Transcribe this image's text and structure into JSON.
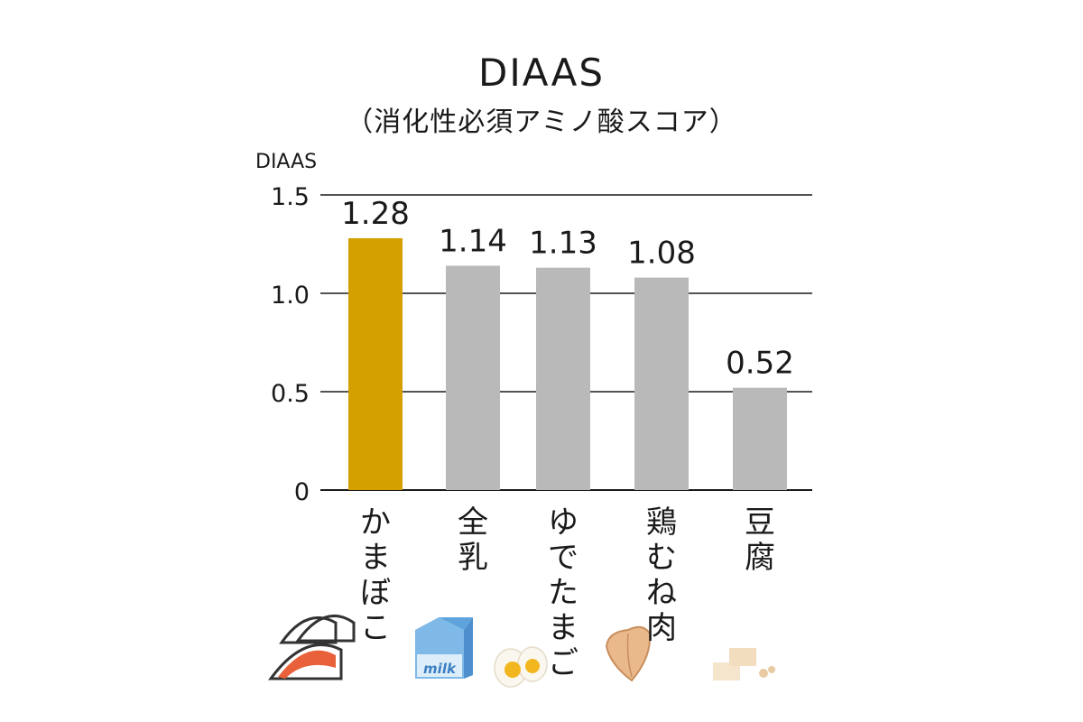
{
  "chart_data": {
    "type": "bar",
    "title": "DIAAS",
    "subtitle": "（消化性必須アミノ酸スコア）",
    "ylabel": "DIAAS",
    "xlabel": "",
    "ylim": [
      0,
      1.5
    ],
    "yticks": [
      "0",
      "0.5",
      "1.0",
      "1.5"
    ],
    "grid": true,
    "categories": [
      "かまぼこ",
      "全乳",
      "ゆでたまご",
      "鶏むね肉",
      "豆腐"
    ],
    "values": [
      1.28,
      1.14,
      1.13,
      1.08,
      0.52
    ],
    "value_labels": [
      "1.28",
      "1.14",
      "1.13",
      "1.08",
      "0.52"
    ],
    "bar_colors": [
      "#D4A000",
      "#B9B9B9",
      "#B9B9B9",
      "#B9B9B9",
      "#B9B9B9"
    ]
  },
  "illustrations": [
    {
      "name": "kamaboko",
      "text": ""
    },
    {
      "name": "milk-carton",
      "text": "milk"
    },
    {
      "name": "boiled-egg",
      "text": ""
    },
    {
      "name": "chicken-breast",
      "text": ""
    },
    {
      "name": "tofu",
      "text": ""
    }
  ]
}
